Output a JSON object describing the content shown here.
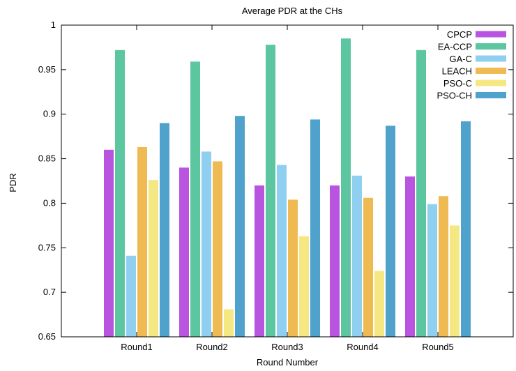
{
  "chart_data": {
    "type": "bar",
    "title": "Average PDR at the CHs",
    "xlabel": "Round Number",
    "ylabel": "PDR",
    "ylim": [
      0.65,
      1.0
    ],
    "yticks": [
      "0.65",
      "0.7",
      "0.75",
      "0.8",
      "0.85",
      "0.9",
      "0.95",
      "1"
    ],
    "categories": [
      "Round1",
      "Round2",
      "Round3",
      "Round4",
      "Round5"
    ],
    "legend_position": "top-right",
    "grid": false,
    "series": [
      {
        "name": "CPCP",
        "color": "#b854e0",
        "values": [
          0.86,
          0.84,
          0.82,
          0.82,
          0.83
        ]
      },
      {
        "name": "EA-CCP",
        "color": "#5cc6a0",
        "values": [
          0.972,
          0.959,
          0.978,
          0.985,
          0.972
        ]
      },
      {
        "name": "GA-C",
        "color": "#8fd0f0",
        "values": [
          0.741,
          0.858,
          0.843,
          0.831,
          0.799
        ]
      },
      {
        "name": "LEACH",
        "color": "#f0ba52",
        "values": [
          0.863,
          0.847,
          0.804,
          0.806,
          0.808
        ]
      },
      {
        "name": "PSO-C",
        "color": "#f5e882",
        "values": [
          0.826,
          0.681,
          0.763,
          0.724,
          0.775
        ]
      },
      {
        "name": "PSO-CH",
        "color": "#4ea2cc",
        "values": [
          0.89,
          0.898,
          0.894,
          0.887,
          0.892
        ]
      }
    ]
  }
}
